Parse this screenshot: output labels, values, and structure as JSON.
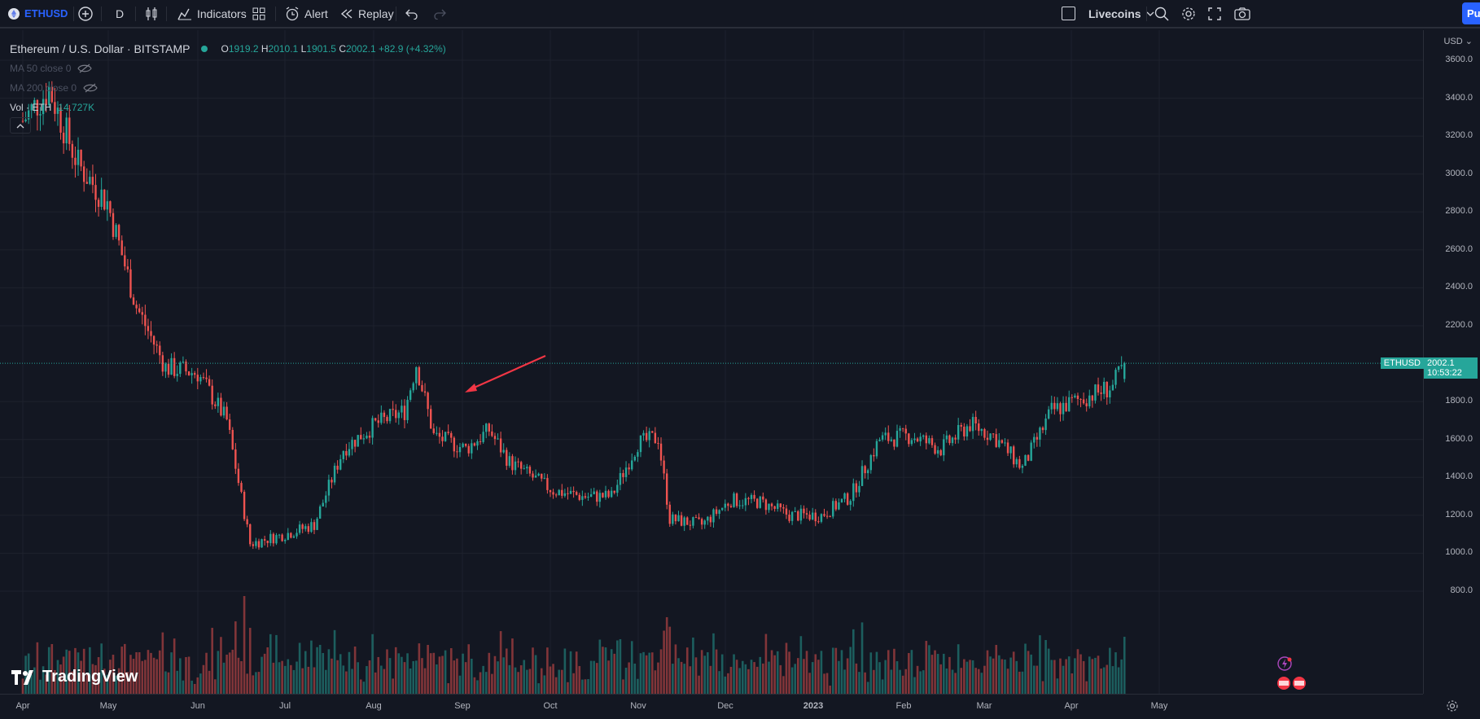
{
  "toolbar": {
    "symbol": "ETHUSD",
    "interval": "D",
    "indicators_label": "Indicators",
    "alert_label": "Alert",
    "replay_label": "Replay",
    "layout_label": "Livecoins",
    "publish_label": "Pu"
  },
  "legend": {
    "title": "Ethereum / U.S. Dollar · BITSTAMP",
    "open_key": "O",
    "open": "1919.2",
    "high_key": "H",
    "high": "2010.1",
    "low_key": "L",
    "low": "1901.5",
    "close_key": "C",
    "close": "2002.1",
    "change": "+82.9 (+4.32%)",
    "ma50": "MA 50 close 0",
    "ma200": "MA 200 close 0",
    "vol_label": "Vol · ETH",
    "vol_value": "14.727K"
  },
  "price_axis": {
    "currency": "USD",
    "ticks": [
      "3600.0",
      "3400.0",
      "3200.0",
      "3000.0",
      "2800.0",
      "2600.0",
      "2400.0",
      "2200.0",
      "1800.0",
      "1600.0",
      "1400.0",
      "1200.0",
      "1000.0",
      "800.0"
    ],
    "last_symbol": "ETHUSD",
    "last_price": "2002.1",
    "countdown": "10:53:22"
  },
  "time_axis": {
    "ticks": [
      "Apr",
      "May",
      "Jun",
      "Jul",
      "Aug",
      "Sep",
      "Oct",
      "Nov",
      "Dec",
      "2023",
      "Feb",
      "Mar",
      "Apr",
      "May"
    ]
  },
  "watermark": "TradingView",
  "colors": {
    "up": "#26a69a",
    "down": "#ef5350",
    "background": "#131722",
    "grid": "#1e222d",
    "arrow": "#f23645"
  },
  "chart_data": {
    "type": "candlestick",
    "title": "Ethereum / U.S. Dollar · BITSTAMP",
    "ylim": [
      720,
      3720
    ],
    "y_scale": "linear",
    "grid": true,
    "series": [
      {
        "name": "ETHUSD",
        "x": [
          "2022-04-01",
          "2022-04-10",
          "2022-04-20",
          "2022-04-30",
          "2022-05-10",
          "2022-05-20",
          "2022-05-31",
          "2022-06-10",
          "2022-06-18",
          "2022-06-30",
          "2022-07-10",
          "2022-07-20",
          "2022-07-31",
          "2022-08-10",
          "2022-08-14",
          "2022-08-20",
          "2022-08-31",
          "2022-09-08",
          "2022-09-15",
          "2022-09-30",
          "2022-10-10",
          "2022-10-20",
          "2022-10-29",
          "2022-11-05",
          "2022-11-09",
          "2022-11-20",
          "2022-11-30",
          "2022-12-10",
          "2022-12-20",
          "2022-12-31",
          "2023-01-10",
          "2023-01-20",
          "2023-01-31",
          "2023-02-10",
          "2023-02-20",
          "2023-02-28",
          "2023-03-10",
          "2023-03-20",
          "2023-03-31",
          "2023-04-10",
          "2023-04-14"
        ],
        "close": [
          3280,
          3450,
          3050,
          2850,
          2300,
          1980,
          1950,
          1700,
          1050,
          1100,
          1150,
          1550,
          1680,
          1750,
          2000,
          1620,
          1550,
          1650,
          1480,
          1330,
          1300,
          1300,
          1580,
          1610,
          1180,
          1150,
          1280,
          1270,
          1200,
          1200,
          1300,
          1600,
          1620,
          1550,
          1680,
          1620,
          1450,
          1750,
          1820,
          1880,
          2002.1
        ]
      }
    ]
  }
}
